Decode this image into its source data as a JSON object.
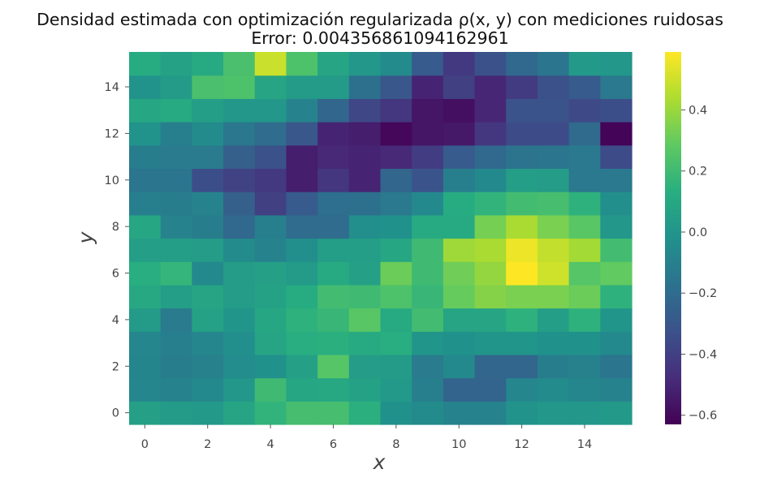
{
  "chart_data": {
    "type": "heatmap",
    "title": "Densidad estimada con optimización regularizada ρ(x, y) con mediciones ruidosas",
    "subtitle": "Error: 0.004356861094162961",
    "xlabel": "x",
    "ylabel": "y",
    "xlim": [
      -0.5,
      15.5
    ],
    "ylim": [
      -0.5,
      15.5
    ],
    "x_ticks": [
      0,
      2,
      4,
      6,
      8,
      10,
      12,
      14
    ],
    "y_ticks": [
      0,
      2,
      4,
      6,
      8,
      10,
      12,
      14
    ],
    "colormap": "viridis",
    "colorbar": {
      "min": -0.63,
      "max": 0.59,
      "ticks": [
        -0.6,
        -0.4,
        -0.2,
        0.0,
        0.2,
        0.4
      ],
      "tick_labels": [
        "−0.6",
        "−0.4",
        "−0.2",
        "0.0",
        "0.2",
        "0.4"
      ]
    },
    "grid": false,
    "values": [
      [
        0.06,
        0.03,
        0.02,
        0.08,
        0.16,
        0.22,
        0.22,
        0.14,
        -0.02,
        -0.05,
        -0.09,
        -0.09,
        -0.01,
        0.01,
        0.01,
        0.02
      ],
      [
        -0.07,
        -0.09,
        -0.06,
        0.01,
        0.2,
        0.09,
        0.1,
        0.07,
        0.02,
        -0.11,
        -0.24,
        -0.24,
        -0.07,
        -0.05,
        -0.07,
        -0.09
      ],
      [
        -0.08,
        -0.12,
        -0.1,
        -0.04,
        -0.02,
        0.06,
        0.26,
        0.04,
        0.03,
        -0.13,
        -0.06,
        -0.23,
        -0.23,
        -0.12,
        -0.1,
        -0.16
      ],
      [
        -0.07,
        -0.11,
        -0.07,
        -0.03,
        0.08,
        0.13,
        0.14,
        0.11,
        0.13,
        0.0,
        -0.02,
        0.0,
        0.0,
        -0.02,
        -0.02,
        -0.06
      ],
      [
        0.03,
        -0.13,
        0.07,
        0.0,
        0.09,
        0.15,
        0.18,
        0.27,
        0.11,
        0.21,
        0.08,
        0.08,
        0.15,
        0.05,
        0.15,
        0.0
      ],
      [
        0.1,
        0.05,
        0.08,
        0.04,
        0.07,
        0.12,
        0.21,
        0.2,
        0.24,
        0.18,
        0.3,
        0.36,
        0.34,
        0.34,
        0.31,
        0.15
      ],
      [
        0.13,
        0.17,
        -0.06,
        0.04,
        0.06,
        0.03,
        0.11,
        0.06,
        0.31,
        0.2,
        0.32,
        0.39,
        0.59,
        0.5,
        0.26,
        0.29
      ],
      [
        0.05,
        0.05,
        0.04,
        -0.05,
        -0.09,
        -0.03,
        0.05,
        0.05,
        0.09,
        0.2,
        0.41,
        0.43,
        0.56,
        0.48,
        0.42,
        0.21
      ],
      [
        0.09,
        -0.09,
        -0.12,
        -0.22,
        -0.11,
        -0.2,
        -0.2,
        -0.03,
        -0.02,
        0.11,
        0.11,
        0.33,
        0.43,
        0.34,
        0.27,
        0.01
      ],
      [
        -0.11,
        -0.12,
        -0.09,
        -0.26,
        -0.4,
        -0.28,
        -0.19,
        -0.18,
        -0.14,
        -0.06,
        0.12,
        0.16,
        0.21,
        0.22,
        0.15,
        -0.03
      ],
      [
        -0.16,
        -0.16,
        -0.34,
        -0.39,
        -0.43,
        -0.53,
        -0.44,
        -0.51,
        -0.23,
        -0.32,
        -0.11,
        -0.06,
        0.05,
        0.04,
        -0.14,
        -0.14
      ],
      [
        -0.12,
        -0.13,
        -0.13,
        -0.26,
        -0.33,
        -0.53,
        -0.49,
        -0.51,
        -0.49,
        -0.41,
        -0.28,
        -0.22,
        -0.17,
        -0.16,
        -0.14,
        -0.35
      ],
      [
        -0.01,
        -0.11,
        -0.05,
        -0.15,
        -0.2,
        -0.3,
        -0.51,
        -0.53,
        -0.61,
        -0.56,
        -0.55,
        -0.44,
        -0.35,
        -0.35,
        -0.21,
        -0.62
      ],
      [
        0.09,
        0.11,
        0.05,
        0.01,
        0.01,
        -0.09,
        -0.23,
        -0.37,
        -0.44,
        -0.56,
        -0.58,
        -0.5,
        -0.32,
        -0.32,
        -0.36,
        -0.34
      ],
      [
        -0.01,
        0.03,
        0.23,
        0.24,
        0.08,
        0.03,
        0.03,
        -0.18,
        -0.3,
        -0.51,
        -0.4,
        -0.5,
        -0.42,
        -0.33,
        -0.28,
        -0.14
      ],
      [
        0.12,
        0.07,
        0.11,
        0.23,
        0.49,
        0.24,
        0.08,
        0.01,
        -0.05,
        -0.28,
        -0.43,
        -0.33,
        -0.22,
        -0.16,
        0.02,
        0.01
      ]
    ]
  }
}
